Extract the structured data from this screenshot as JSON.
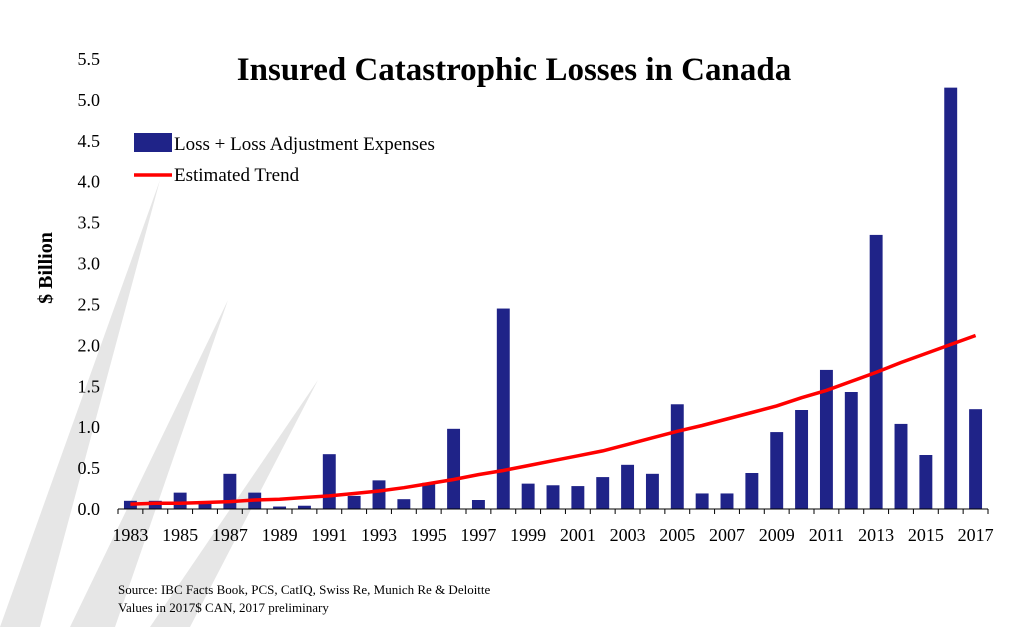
{
  "chart_data": {
    "type": "bar",
    "title": "Insured Catastrophic Losses in Canada",
    "ylabel": "$ Billion",
    "xlabel": "",
    "ylim": [
      0,
      5.5
    ],
    "yticks": [
      "0.0",
      "0.5",
      "1.0",
      "1.5",
      "2.0",
      "2.5",
      "3.0",
      "3.5",
      "4.0",
      "4.5",
      "5.0",
      "5.5"
    ],
    "xtick_labels": [
      "1983",
      "1985",
      "1987",
      "1989",
      "1991",
      "1993",
      "1995",
      "1997",
      "1999",
      "2001",
      "2003",
      "2005",
      "2007",
      "2009",
      "2011",
      "2013",
      "2015",
      "2017"
    ],
    "categories": [
      1983,
      1984,
      1985,
      1986,
      1987,
      1988,
      1989,
      1990,
      1991,
      1992,
      1993,
      1994,
      1995,
      1996,
      1997,
      1998,
      1999,
      2000,
      2001,
      2002,
      2003,
      2004,
      2005,
      2006,
      2007,
      2008,
      2009,
      2010,
      2011,
      2012,
      2013,
      2014,
      2015,
      2016,
      2017
    ],
    "series": [
      {
        "name": "Loss + Loss Adjustment Expenses",
        "kind": "bar",
        "color": "#1f2388",
        "values": [
          0.1,
          0.1,
          0.2,
          0.09,
          0.43,
          0.2,
          0.03,
          0.04,
          0.67,
          0.16,
          0.35,
          0.12,
          0.32,
          0.98,
          0.11,
          2.45,
          0.31,
          0.29,
          0.28,
          0.39,
          0.54,
          0.43,
          1.28,
          0.19,
          0.19,
          0.44,
          0.94,
          1.21,
          1.7,
          1.43,
          3.35,
          1.04,
          0.66,
          5.15,
          1.22
        ]
      },
      {
        "name": "Estimated Trend",
        "kind": "line",
        "color": "#ff0000",
        "values": [
          0.06,
          0.07,
          0.07,
          0.08,
          0.09,
          0.11,
          0.12,
          0.14,
          0.16,
          0.19,
          0.22,
          0.26,
          0.31,
          0.36,
          0.42,
          0.47,
          0.53,
          0.59,
          0.65,
          0.71,
          0.79,
          0.87,
          0.95,
          1.02,
          1.1,
          1.18,
          1.26,
          1.36,
          1.45,
          1.56,
          1.67,
          1.79,
          1.9,
          2.01,
          2.12
        ]
      }
    ],
    "legend_placement": "top-left",
    "grid": false
  },
  "source": {
    "line1": "Source: IBC  Facts Book, PCS,  CatIQ, Swiss Re, Munich Re & Deloitte",
    "line2": "Values in 2017$ CAN, 2017 preliminary"
  }
}
